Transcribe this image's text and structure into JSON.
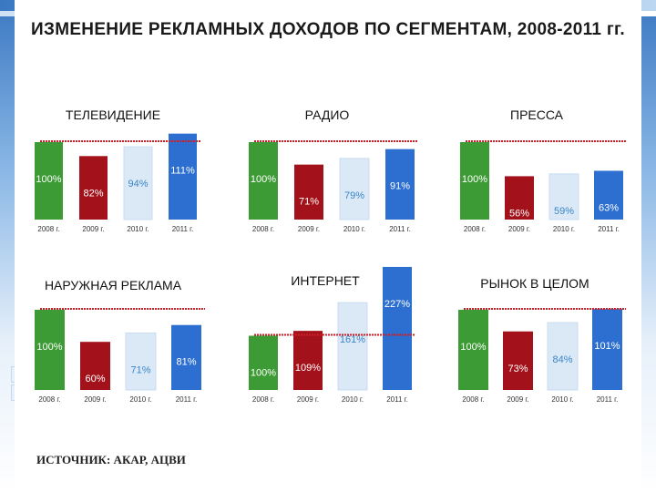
{
  "title": "ИЗМЕНЕНИЕ РЕКЛАМНЫХ ДОХОДОВ ПО СЕГМЕНТАМ, 2008-2011 гг.",
  "source": "ИСТОЧНИК: АКАР, АЦВИ",
  "colors": [
    "#3d9b35",
    "#a3121a",
    "#dbe9f7",
    "#2d6fd0"
  ],
  "chart_data": [
    {
      "type": "bar",
      "title": "ТЕЛЕВИДЕНИЕ",
      "categories": [
        "2008 г.",
        "2009 г.",
        "2010 г.",
        "2011 г."
      ],
      "values": [
        100,
        82,
        94,
        111
      ],
      "labels": [
        "100%",
        "82%",
        "94%",
        "111%"
      ],
      "ylim": [
        0,
        115
      ]
    },
    {
      "type": "bar",
      "title": "РАДИО",
      "categories": [
        "2008 г.",
        "2009 г.",
        "2010 г.",
        "2011 г."
      ],
      "values": [
        100,
        71,
        79,
        91
      ],
      "labels": [
        "100%",
        "71%",
        "79%",
        "91%"
      ],
      "ylim": [
        0,
        115
      ]
    },
    {
      "type": "bar",
      "title": "ПРЕССА",
      "categories": [
        "2008 г.",
        "2009 г.",
        "2010 г.",
        "2011 г."
      ],
      "values": [
        100,
        56,
        59,
        63
      ],
      "labels": [
        "100%",
        "56%",
        "59%",
        "63%"
      ],
      "ylim": [
        0,
        115
      ]
    },
    {
      "type": "bar",
      "title": "НАРУЖНАЯ РЕКЛАМА",
      "categories": [
        "2008 г.",
        "2009 г.",
        "2010 г.",
        "2011 г."
      ],
      "values": [
        100,
        60,
        71,
        81
      ],
      "labels": [
        "100%",
        "60%",
        "71%",
        "81%"
      ],
      "ylim": [
        0,
        115
      ]
    },
    {
      "type": "bar",
      "title": "ИНТЕРНЕТ",
      "categories": [
        "2008 г.",
        "2009 г.",
        "2010 г.",
        "2011 г."
      ],
      "values": [
        100,
        109,
        161,
        227
      ],
      "labels": [
        "100%",
        "109%",
        "161%",
        "227%"
      ],
      "ylim": [
        0,
        250
      ]
    },
    {
      "type": "bar",
      "title": "РЫНОК В ЦЕЛОМ",
      "categories": [
        "2008 г.",
        "2009 г.",
        "2010 г.",
        "2011 г."
      ],
      "values": [
        100,
        73,
        84,
        101
      ],
      "labels": [
        "100%",
        "73%",
        "84%",
        "101%"
      ],
      "ylim": [
        0,
        115
      ]
    }
  ]
}
